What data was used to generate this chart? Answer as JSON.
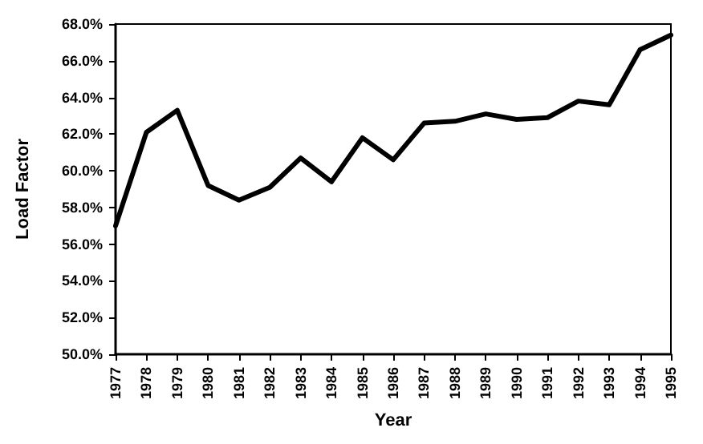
{
  "chart_data": {
    "type": "line",
    "xlabel": "Year",
    "ylabel": "Load Factor",
    "categories": [
      "1977",
      "1978",
      "1979",
      "1980",
      "1981",
      "1982",
      "1983",
      "1984",
      "1985",
      "1986",
      "1987",
      "1988",
      "1989",
      "1990",
      "1991",
      "1992",
      "1993",
      "1994",
      "1995"
    ],
    "series": [
      {
        "color": "#000000",
        "values": [
          57.0,
          62.1,
          63.3,
          59.2,
          58.4,
          59.1,
          60.7,
          59.4,
          61.8,
          60.6,
          62.6,
          62.7,
          63.1,
          62.8,
          62.9,
          63.8,
          63.6,
          66.6,
          67.4
        ]
      }
    ],
    "ylim": [
      50,
      68
    ],
    "yticks": [
      {
        "value": 50,
        "label": "50.0%"
      },
      {
        "value": 52,
        "label": "52.0%"
      },
      {
        "value": 54,
        "label": "54.0%"
      },
      {
        "value": 56,
        "label": "56.0%"
      },
      {
        "value": 58,
        "label": "58.0%"
      },
      {
        "value": 60,
        "label": "60.0%"
      },
      {
        "value": 62,
        "label": "62.0%"
      },
      {
        "value": 64,
        "label": "64.0%"
      },
      {
        "value": 66,
        "label": "66.0%"
      },
      {
        "value": 68,
        "label": "68.0%"
      }
    ],
    "grid": false,
    "marker": "none",
    "line_style": "solid"
  }
}
